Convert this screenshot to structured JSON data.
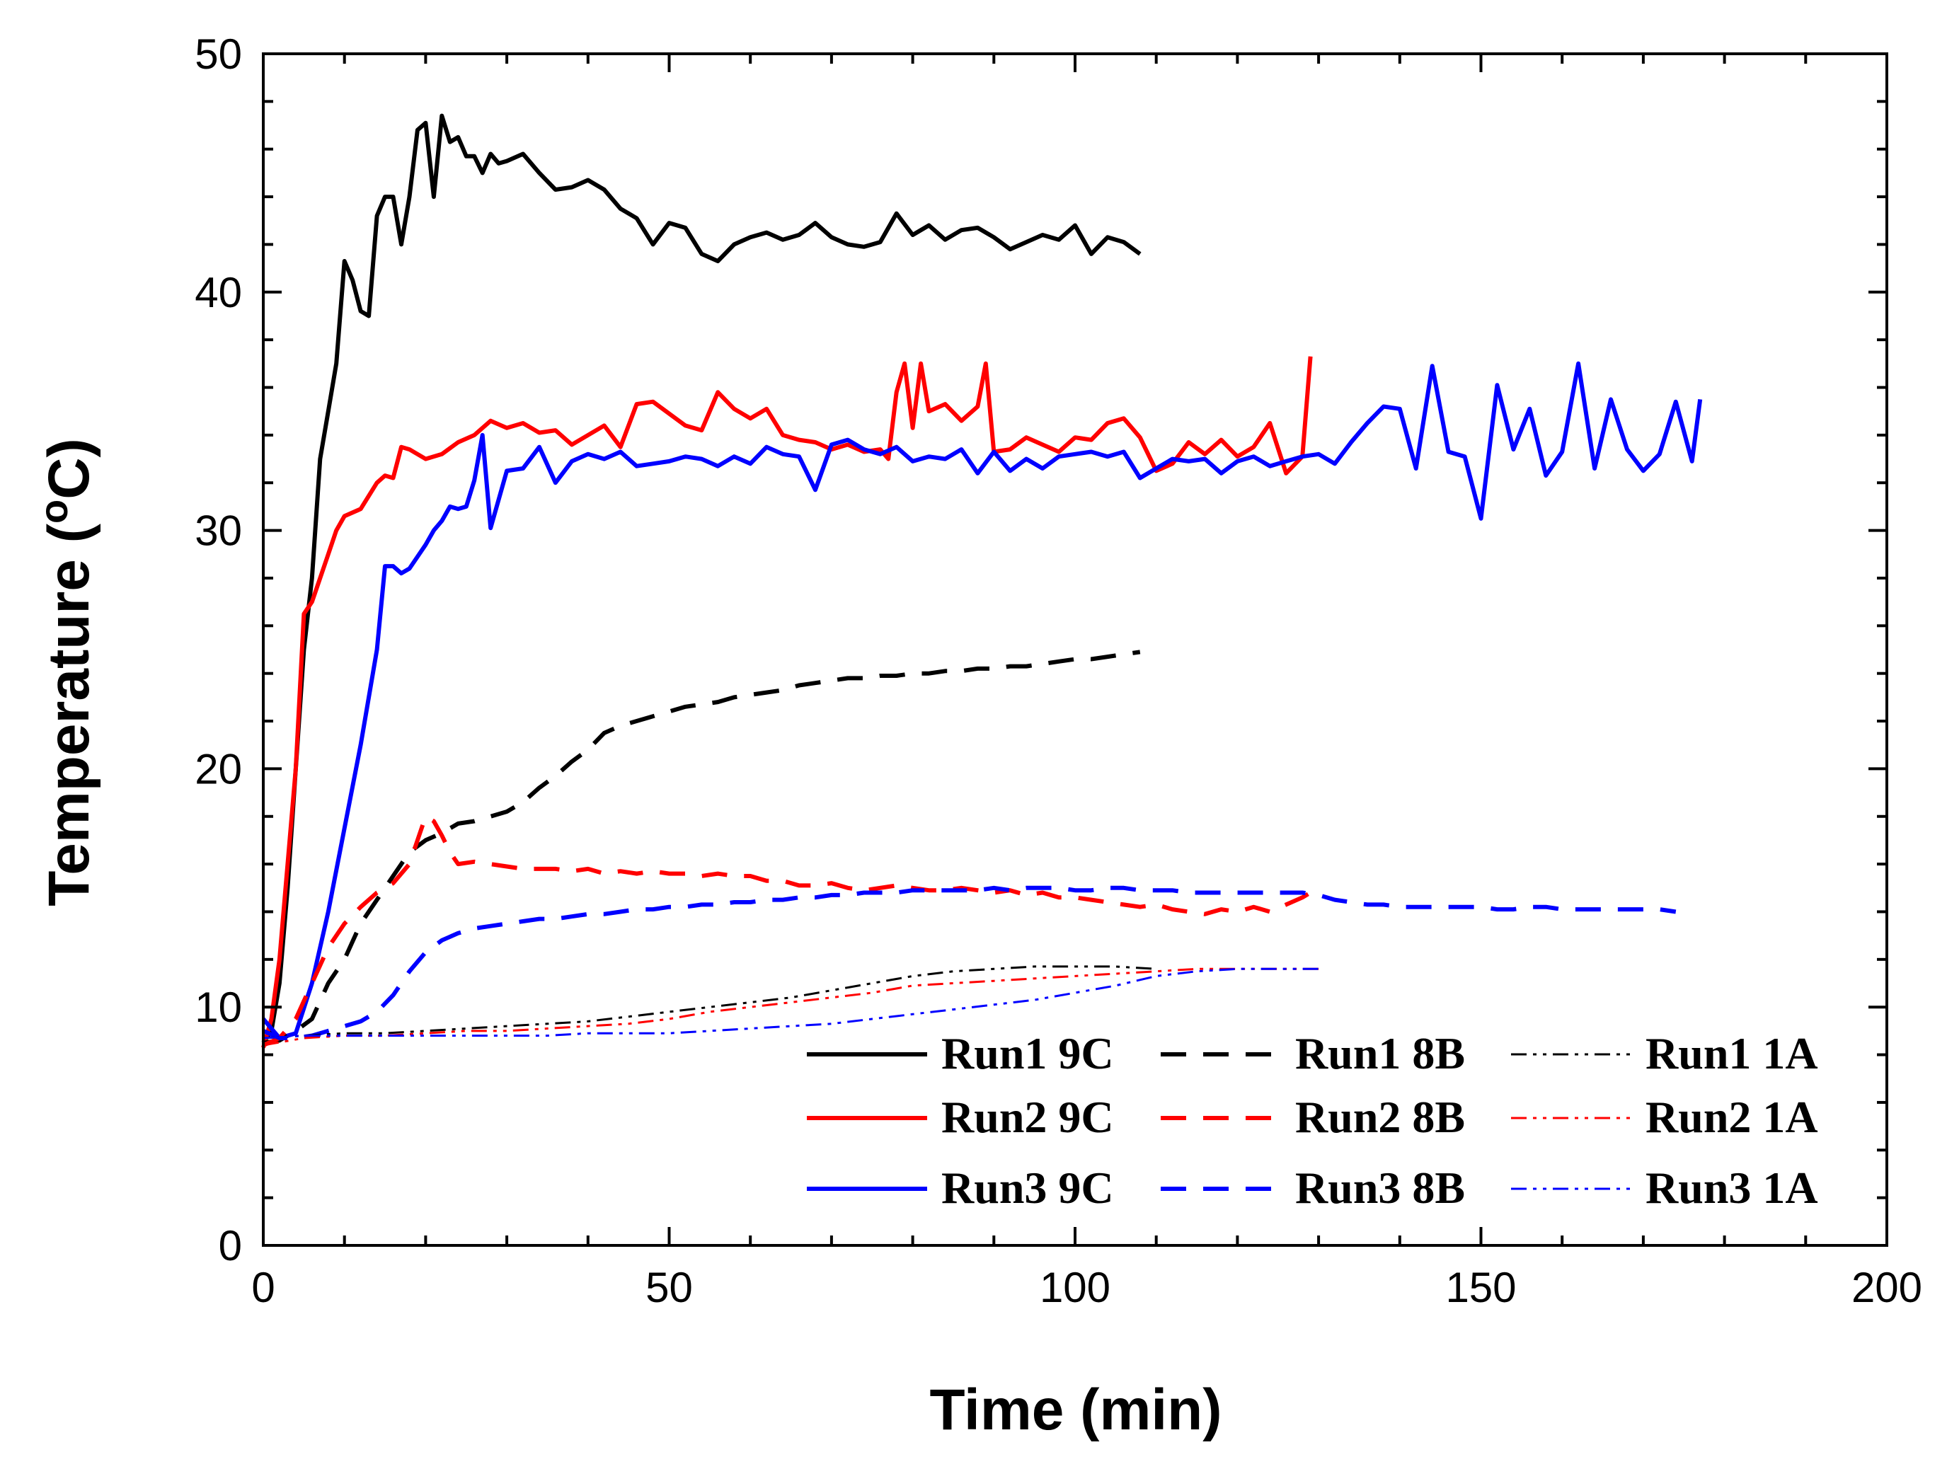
{
  "chart_data": {
    "type": "line",
    "title": "",
    "xlabel": "Time (min)",
    "ylabel_main": "Temperature (",
    "ylabel_super": "o",
    "ylabel_unit": "C)",
    "xlim": [
      0,
      200
    ],
    "ylim": [
      0,
      50
    ],
    "xticks": [
      0,
      50,
      100,
      150,
      200
    ],
    "yticks": [
      0,
      10,
      20,
      30,
      40,
      50
    ],
    "grid": false,
    "legend_position": "bottom-right",
    "series": [
      {
        "name": "Run1 9C",
        "color": "#000000",
        "style": "solid",
        "x": [
          0,
          1,
          2,
          3,
          4,
          5,
          6,
          7,
          8,
          9,
          10,
          11,
          12,
          13,
          14,
          15,
          16,
          17,
          18,
          19,
          20,
          21,
          22,
          23,
          24,
          25,
          26,
          27,
          28,
          29,
          30,
          32,
          34,
          36,
          38,
          40,
          42,
          44,
          46,
          48,
          50,
          52,
          54,
          56,
          58,
          60,
          62,
          64,
          66,
          68,
          70,
          72,
          74,
          76,
          78,
          80,
          82,
          84,
          86,
          88,
          90,
          92,
          94,
          96,
          98,
          100,
          102,
          104,
          106,
          108
        ],
        "values": [
          8.5,
          9,
          11,
          15,
          20,
          25,
          28,
          33,
          35,
          37,
          41.3,
          40.5,
          39.2,
          39,
          43.2,
          44,
          44,
          42,
          44,
          46.8,
          47.1,
          44,
          47.4,
          46.3,
          46.5,
          45.7,
          45.7,
          45,
          45.8,
          45.4,
          45.5,
          45.8,
          45,
          44.3,
          44.4,
          44.7,
          44.3,
          43.5,
          43.1,
          42,
          42.9,
          42.7,
          41.6,
          41.3,
          42,
          42.3,
          42.5,
          42.2,
          42.4,
          42.9,
          42.3,
          42,
          41.9,
          42.1,
          43.3,
          42.4,
          42.8,
          42.2,
          42.6,
          42.7,
          42.3,
          41.8,
          42.1,
          42.4,
          42.2,
          42.8,
          41.6,
          42.3,
          42.1,
          41.6
        ]
      },
      {
        "name": "Run2 9C",
        "color": "#ff0000",
        "style": "solid",
        "x": [
          0,
          1,
          2,
          3,
          4,
          5,
          6,
          7,
          8,
          9,
          10,
          12,
          14,
          15,
          16,
          17,
          18,
          20,
          22,
          24,
          26,
          28,
          30,
          32,
          34,
          36,
          38,
          40,
          42,
          44,
          46,
          48,
          50,
          52,
          54,
          56,
          58,
          60,
          62,
          64,
          66,
          68,
          70,
          72,
          74,
          76,
          77,
          78,
          79,
          80,
          81,
          82,
          84,
          86,
          88,
          89,
          90,
          92,
          94,
          96,
          98,
          100,
          102,
          104,
          106,
          108,
          110,
          112,
          114,
          116,
          118,
          120,
          122,
          124,
          126,
          128,
          129
        ],
        "values": [
          8.3,
          9.5,
          12,
          16,
          20,
          26.5,
          27,
          28,
          29,
          30,
          30.6,
          30.9,
          32,
          32.3,
          32.2,
          33.5,
          33.4,
          33,
          33.2,
          33.7,
          34,
          34.6,
          34.3,
          34.5,
          34.1,
          34.2,
          33.6,
          34,
          34.4,
          33.5,
          35.3,
          35.4,
          34.9,
          34.4,
          34.2,
          35.8,
          35.1,
          34.7,
          35.1,
          34,
          33.8,
          33.7,
          33.4,
          33.6,
          33.3,
          33.4,
          33,
          35.8,
          37,
          34.3,
          37,
          35,
          35.3,
          34.6,
          35.2,
          37,
          33.3,
          33.4,
          33.9,
          33.6,
          33.3,
          33.9,
          33.8,
          34.5,
          34.7,
          33.9,
          32.5,
          32.8,
          33.7,
          33.2,
          33.8,
          33.1,
          33.5,
          34.5,
          32.4,
          33.1,
          37.3
        ]
      },
      {
        "name": "Run3 9C",
        "color": "#0000ff",
        "style": "solid",
        "x": [
          0,
          2,
          4,
          6,
          8,
          10,
          12,
          14,
          15,
          16,
          17,
          18,
          20,
          21,
          22,
          23,
          24,
          25,
          26,
          27,
          28,
          30,
          32,
          34,
          36,
          38,
          40,
          42,
          44,
          46,
          48,
          50,
          52,
          54,
          56,
          58,
          60,
          62,
          64,
          66,
          68,
          70,
          72,
          74,
          76,
          78,
          80,
          82,
          84,
          86,
          88,
          90,
          92,
          94,
          96,
          98,
          100,
          102,
          104,
          106,
          108,
          110,
          112,
          114,
          116,
          118,
          120,
          122,
          124,
          126,
          128,
          130,
          132,
          134,
          136,
          138,
          140,
          142,
          144,
          146,
          148,
          150,
          152,
          154,
          156,
          158,
          160,
          162,
          164,
          166,
          168,
          170,
          172,
          174,
          176,
          177
        ],
        "values": [
          9.5,
          8.7,
          8.9,
          11,
          14,
          17.5,
          21,
          25,
          28.5,
          28.5,
          28.2,
          28.4,
          29.4,
          30,
          30.4,
          31,
          30.9,
          31,
          32.1,
          34,
          30.1,
          32.5,
          32.6,
          33.5,
          32,
          32.9,
          33.2,
          33,
          33.3,
          32.7,
          32.8,
          32.9,
          33.1,
          33,
          32.7,
          33.1,
          32.8,
          33.5,
          33.2,
          33.1,
          31.7,
          33.6,
          33.8,
          33.4,
          33.2,
          33.5,
          32.9,
          33.1,
          33,
          33.4,
          32.4,
          33.3,
          32.5,
          33,
          32.6,
          33.1,
          33.2,
          33.3,
          33.1,
          33.3,
          32.2,
          32.6,
          33,
          32.9,
          33,
          32.4,
          32.9,
          33.1,
          32.7,
          32.9,
          33.1,
          33.2,
          32.8,
          33.7,
          34.5,
          35.2,
          35.1,
          32.6,
          36.9,
          33.3,
          33.1,
          30.5,
          36.1,
          33.4,
          35.1,
          32.3,
          33.3,
          37,
          32.6,
          35.5,
          33.4,
          32.5,
          33.2,
          35.4,
          32.9,
          35.5
        ]
      },
      {
        "name": "Run1 8B",
        "color": "#000000",
        "style": "dash",
        "x": [
          0,
          2,
          4,
          6,
          8,
          10,
          12,
          14,
          16,
          18,
          20,
          22,
          24,
          26,
          28,
          30,
          32,
          34,
          36,
          38,
          40,
          42,
          44,
          46,
          48,
          50,
          52,
          54,
          56,
          58,
          60,
          62,
          64,
          66,
          68,
          70,
          72,
          74,
          76,
          78,
          80,
          82,
          84,
          86,
          88,
          90,
          92,
          94,
          96,
          98,
          100,
          102,
          104,
          106,
          108
        ],
        "values": [
          8.5,
          8.6,
          9,
          9.5,
          11,
          12,
          13.5,
          14.5,
          15.5,
          16.5,
          17,
          17.3,
          17.7,
          17.8,
          18,
          18.2,
          18.6,
          19.2,
          19.7,
          20.3,
          20.8,
          21.5,
          21.8,
          22,
          22.2,
          22.4,
          22.6,
          22.7,
          22.8,
          23,
          23.1,
          23.2,
          23.3,
          23.5,
          23.6,
          23.7,
          23.8,
          23.8,
          23.9,
          23.9,
          24,
          24,
          24.1,
          24.1,
          24.2,
          24.2,
          24.3,
          24.3,
          24.4,
          24.5,
          24.6,
          24.6,
          24.7,
          24.8,
          24.9
        ]
      },
      {
        "name": "Run2 8B",
        "color": "#ff0000",
        "style": "dash",
        "x": [
          0,
          2,
          4,
          6,
          8,
          10,
          12,
          14,
          16,
          18,
          19,
          20,
          21,
          22,
          23,
          24,
          26,
          28,
          30,
          32,
          34,
          36,
          38,
          40,
          42,
          44,
          46,
          48,
          50,
          52,
          54,
          56,
          58,
          60,
          62,
          64,
          66,
          68,
          70,
          72,
          74,
          76,
          78,
          80,
          82,
          84,
          86,
          88,
          90,
          92,
          94,
          96,
          98,
          100,
          102,
          104,
          106,
          108,
          110,
          112,
          114,
          116,
          118,
          120,
          122,
          124,
          126,
          128,
          129
        ],
        "values": [
          8.4,
          8.7,
          9.5,
          11,
          12.5,
          13.5,
          14.2,
          14.8,
          15.2,
          16,
          17,
          18,
          17.8,
          17.2,
          16.5,
          16,
          16.1,
          16,
          15.9,
          15.8,
          15.8,
          15.8,
          15.7,
          15.8,
          15.6,
          15.7,
          15.6,
          15.7,
          15.6,
          15.6,
          15.5,
          15.6,
          15.5,
          15.5,
          15.3,
          15.3,
          15.1,
          15.1,
          15.2,
          15,
          14.9,
          15,
          15.1,
          15,
          14.9,
          14.9,
          15,
          14.9,
          14.8,
          14.9,
          14.7,
          14.8,
          14.6,
          14.6,
          14.5,
          14.4,
          14.3,
          14.2,
          14.3,
          14.1,
          14,
          13.9,
          14.1,
          14,
          14.2,
          14,
          14.3,
          14.6,
          14.8
        ]
      },
      {
        "name": "Run3 8B",
        "color": "#0000ff",
        "style": "dash",
        "x": [
          0,
          2,
          4,
          6,
          8,
          10,
          12,
          14,
          16,
          18,
          20,
          22,
          24,
          26,
          28,
          30,
          32,
          34,
          36,
          38,
          40,
          42,
          44,
          46,
          48,
          50,
          52,
          54,
          56,
          58,
          60,
          62,
          64,
          66,
          68,
          70,
          72,
          74,
          76,
          78,
          80,
          82,
          84,
          86,
          88,
          90,
          92,
          94,
          96,
          98,
          100,
          102,
          104,
          106,
          108,
          110,
          112,
          114,
          116,
          118,
          120,
          122,
          124,
          126,
          128,
          130,
          132,
          134,
          136,
          138,
          140,
          142,
          144,
          146,
          148,
          150,
          152,
          154,
          156,
          158,
          160,
          162,
          164,
          166,
          168,
          170,
          172,
          174
        ],
        "values": [
          9,
          8.7,
          8.7,
          8.8,
          9,
          9.2,
          9.4,
          9.8,
          10.5,
          11.5,
          12.3,
          12.8,
          13.1,
          13.3,
          13.4,
          13.5,
          13.6,
          13.7,
          13.7,
          13.8,
          13.9,
          13.9,
          14,
          14.1,
          14.1,
          14.2,
          14.2,
          14.3,
          14.3,
          14.4,
          14.4,
          14.5,
          14.5,
          14.6,
          14.6,
          14.7,
          14.7,
          14.8,
          14.8,
          14.8,
          14.9,
          14.9,
          14.9,
          14.9,
          14.9,
          15,
          14.9,
          15,
          15,
          15,
          14.9,
          14.9,
          15,
          15,
          14.9,
          14.9,
          14.9,
          14.8,
          14.8,
          14.8,
          14.8,
          14.8,
          14.8,
          14.8,
          14.8,
          14.7,
          14.5,
          14.4,
          14.3,
          14.3,
          14.2,
          14.2,
          14.2,
          14.2,
          14.2,
          14.2,
          14.1,
          14.1,
          14.2,
          14.2,
          14.1,
          14.1,
          14.1,
          14.1,
          14.1,
          14.1,
          14.1,
          14
        ]
      },
      {
        "name": "Run1 1A",
        "color": "#000000",
        "style": "dashdotdot",
        "x": [
          0,
          5,
          10,
          15,
          20,
          25,
          30,
          35,
          40,
          45,
          50,
          55,
          60,
          65,
          70,
          75,
          80,
          85,
          90,
          95,
          100,
          105,
          110
        ],
        "values": [
          8.7,
          8.8,
          8.9,
          8.9,
          9,
          9.1,
          9.2,
          9.3,
          9.4,
          9.6,
          9.8,
          10,
          10.2,
          10.4,
          10.7,
          11,
          11.3,
          11.5,
          11.6,
          11.7,
          11.7,
          11.7,
          11.6
        ]
      },
      {
        "name": "Run2 1A",
        "color": "#ff0000",
        "style": "dashdotdot",
        "x": [
          0,
          5,
          10,
          15,
          20,
          25,
          30,
          35,
          40,
          45,
          50,
          55,
          60,
          65,
          70,
          75,
          80,
          85,
          90,
          95,
          100,
          105,
          110,
          115,
          120,
          125,
          130
        ],
        "values": [
          8.4,
          8.7,
          8.8,
          8.8,
          8.9,
          9,
          9,
          9.1,
          9.2,
          9.3,
          9.5,
          9.8,
          10,
          10.2,
          10.4,
          10.6,
          10.9,
          11,
          11.1,
          11.2,
          11.3,
          11.4,
          11.5,
          11.6,
          11.6,
          11.6,
          11.6
        ]
      },
      {
        "name": "Run3 1A",
        "color": "#0000ff",
        "style": "dashdotdot",
        "x": [
          0,
          5,
          10,
          15,
          20,
          25,
          30,
          35,
          40,
          45,
          50,
          55,
          60,
          65,
          70,
          75,
          80,
          85,
          90,
          95,
          100,
          105,
          110,
          115,
          120,
          125,
          130
        ],
        "values": [
          8.7,
          8.8,
          8.8,
          8.8,
          8.8,
          8.8,
          8.8,
          8.8,
          8.9,
          8.9,
          8.9,
          9,
          9.1,
          9.2,
          9.3,
          9.5,
          9.7,
          9.9,
          10.1,
          10.3,
          10.6,
          10.9,
          11.3,
          11.5,
          11.6,
          11.6,
          11.6
        ]
      }
    ]
  }
}
